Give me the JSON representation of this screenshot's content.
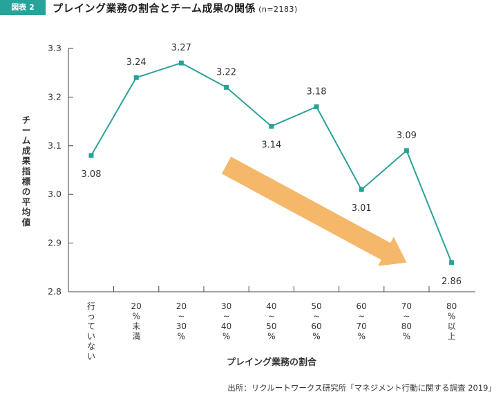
{
  "header": {
    "badge": "図表 2",
    "title": "プレイング業務の割合とチーム成果の関係",
    "sample": "(n=2183)"
  },
  "chart_data": {
    "type": "line",
    "categories": [
      "行っていない",
      "20%未満",
      "20~30%",
      "30~40%",
      "40~50%",
      "50~60%",
      "60~70%",
      "70~80%",
      "80%以上"
    ],
    "tick_labels_vertical": [
      [
        "行",
        "っ",
        "て",
        "い",
        "な",
        "い"
      ],
      [
        "20",
        "%",
        "未",
        "満"
      ],
      [
        "20",
        "~",
        "30",
        "%"
      ],
      [
        "30",
        "~",
        "40",
        "%"
      ],
      [
        "40",
        "~",
        "50",
        "%"
      ],
      [
        "50",
        "~",
        "60",
        "%"
      ],
      [
        "60",
        "~",
        "70",
        "%"
      ],
      [
        "70",
        "~",
        "80",
        "%"
      ],
      [
        "80",
        "%",
        "以",
        "上"
      ]
    ],
    "series": [
      {
        "values": [
          3.08,
          3.24,
          3.27,
          3.22,
          3.14,
          3.18,
          3.01,
          3.09,
          2.86
        ]
      }
    ],
    "data_labels": [
      "3.08",
      "3.24",
      "3.27",
      "3.22",
      "3.14",
      "3.18",
      "3.01",
      "3.09",
      "2.86"
    ],
    "label_position": [
      "below",
      "above",
      "above",
      "above",
      "below",
      "above",
      "below",
      "above",
      "below"
    ],
    "ylim": [
      2.8,
      3.3
    ],
    "yticks": [
      2.8,
      2.9,
      3.0,
      3.1,
      3.2,
      3.3
    ],
    "ytick_labels": [
      "2.8",
      "2.9",
      "3.0",
      "3.1",
      "3.2",
      "3.3"
    ],
    "ylabel": "チーム成果指標の平均値",
    "xlabel": "プレイング業務の割合",
    "grid": false,
    "trend_arrow": {
      "from_category": 3.0,
      "from_value": 3.06,
      "to_category": 7.0,
      "to_value": 2.86
    },
    "colors": {
      "line": "#2aa197",
      "arrow": "#f5b86a",
      "axis": "#444444"
    }
  },
  "footer": {
    "source": "出所：リクルートワークス研究所「マネジメント行動に関する調査 2019」"
  }
}
